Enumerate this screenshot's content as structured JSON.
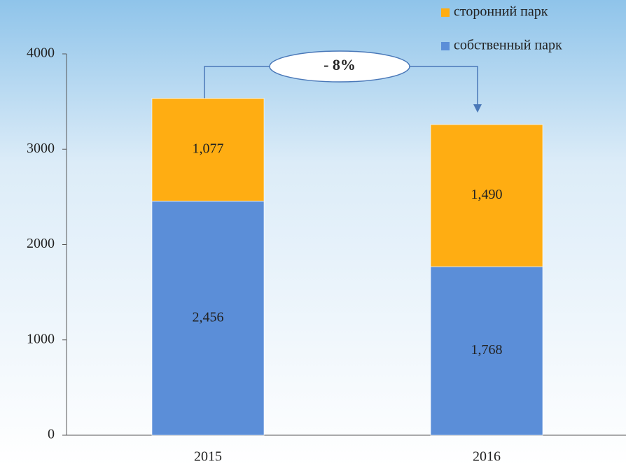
{
  "chart_data": {
    "type": "stacked_bar",
    "categories": [
      "2015",
      "2016"
    ],
    "series": [
      {
        "name": "собственный парк",
        "color": "#5b8ed8",
        "values": [
          2456,
          1768
        ],
        "value_labels": [
          "2,456",
          "1,768"
        ]
      },
      {
        "name": "сторонний парк",
        "color": "#ffad12",
        "values": [
          1077,
          1490
        ],
        "value_labels": [
          "1,077",
          "1,490"
        ]
      }
    ],
    "ylim": [
      0,
      4000
    ],
    "yticks": [
      0,
      1000,
      2000,
      3000,
      4000
    ],
    "annotation": "- 8%"
  }
}
